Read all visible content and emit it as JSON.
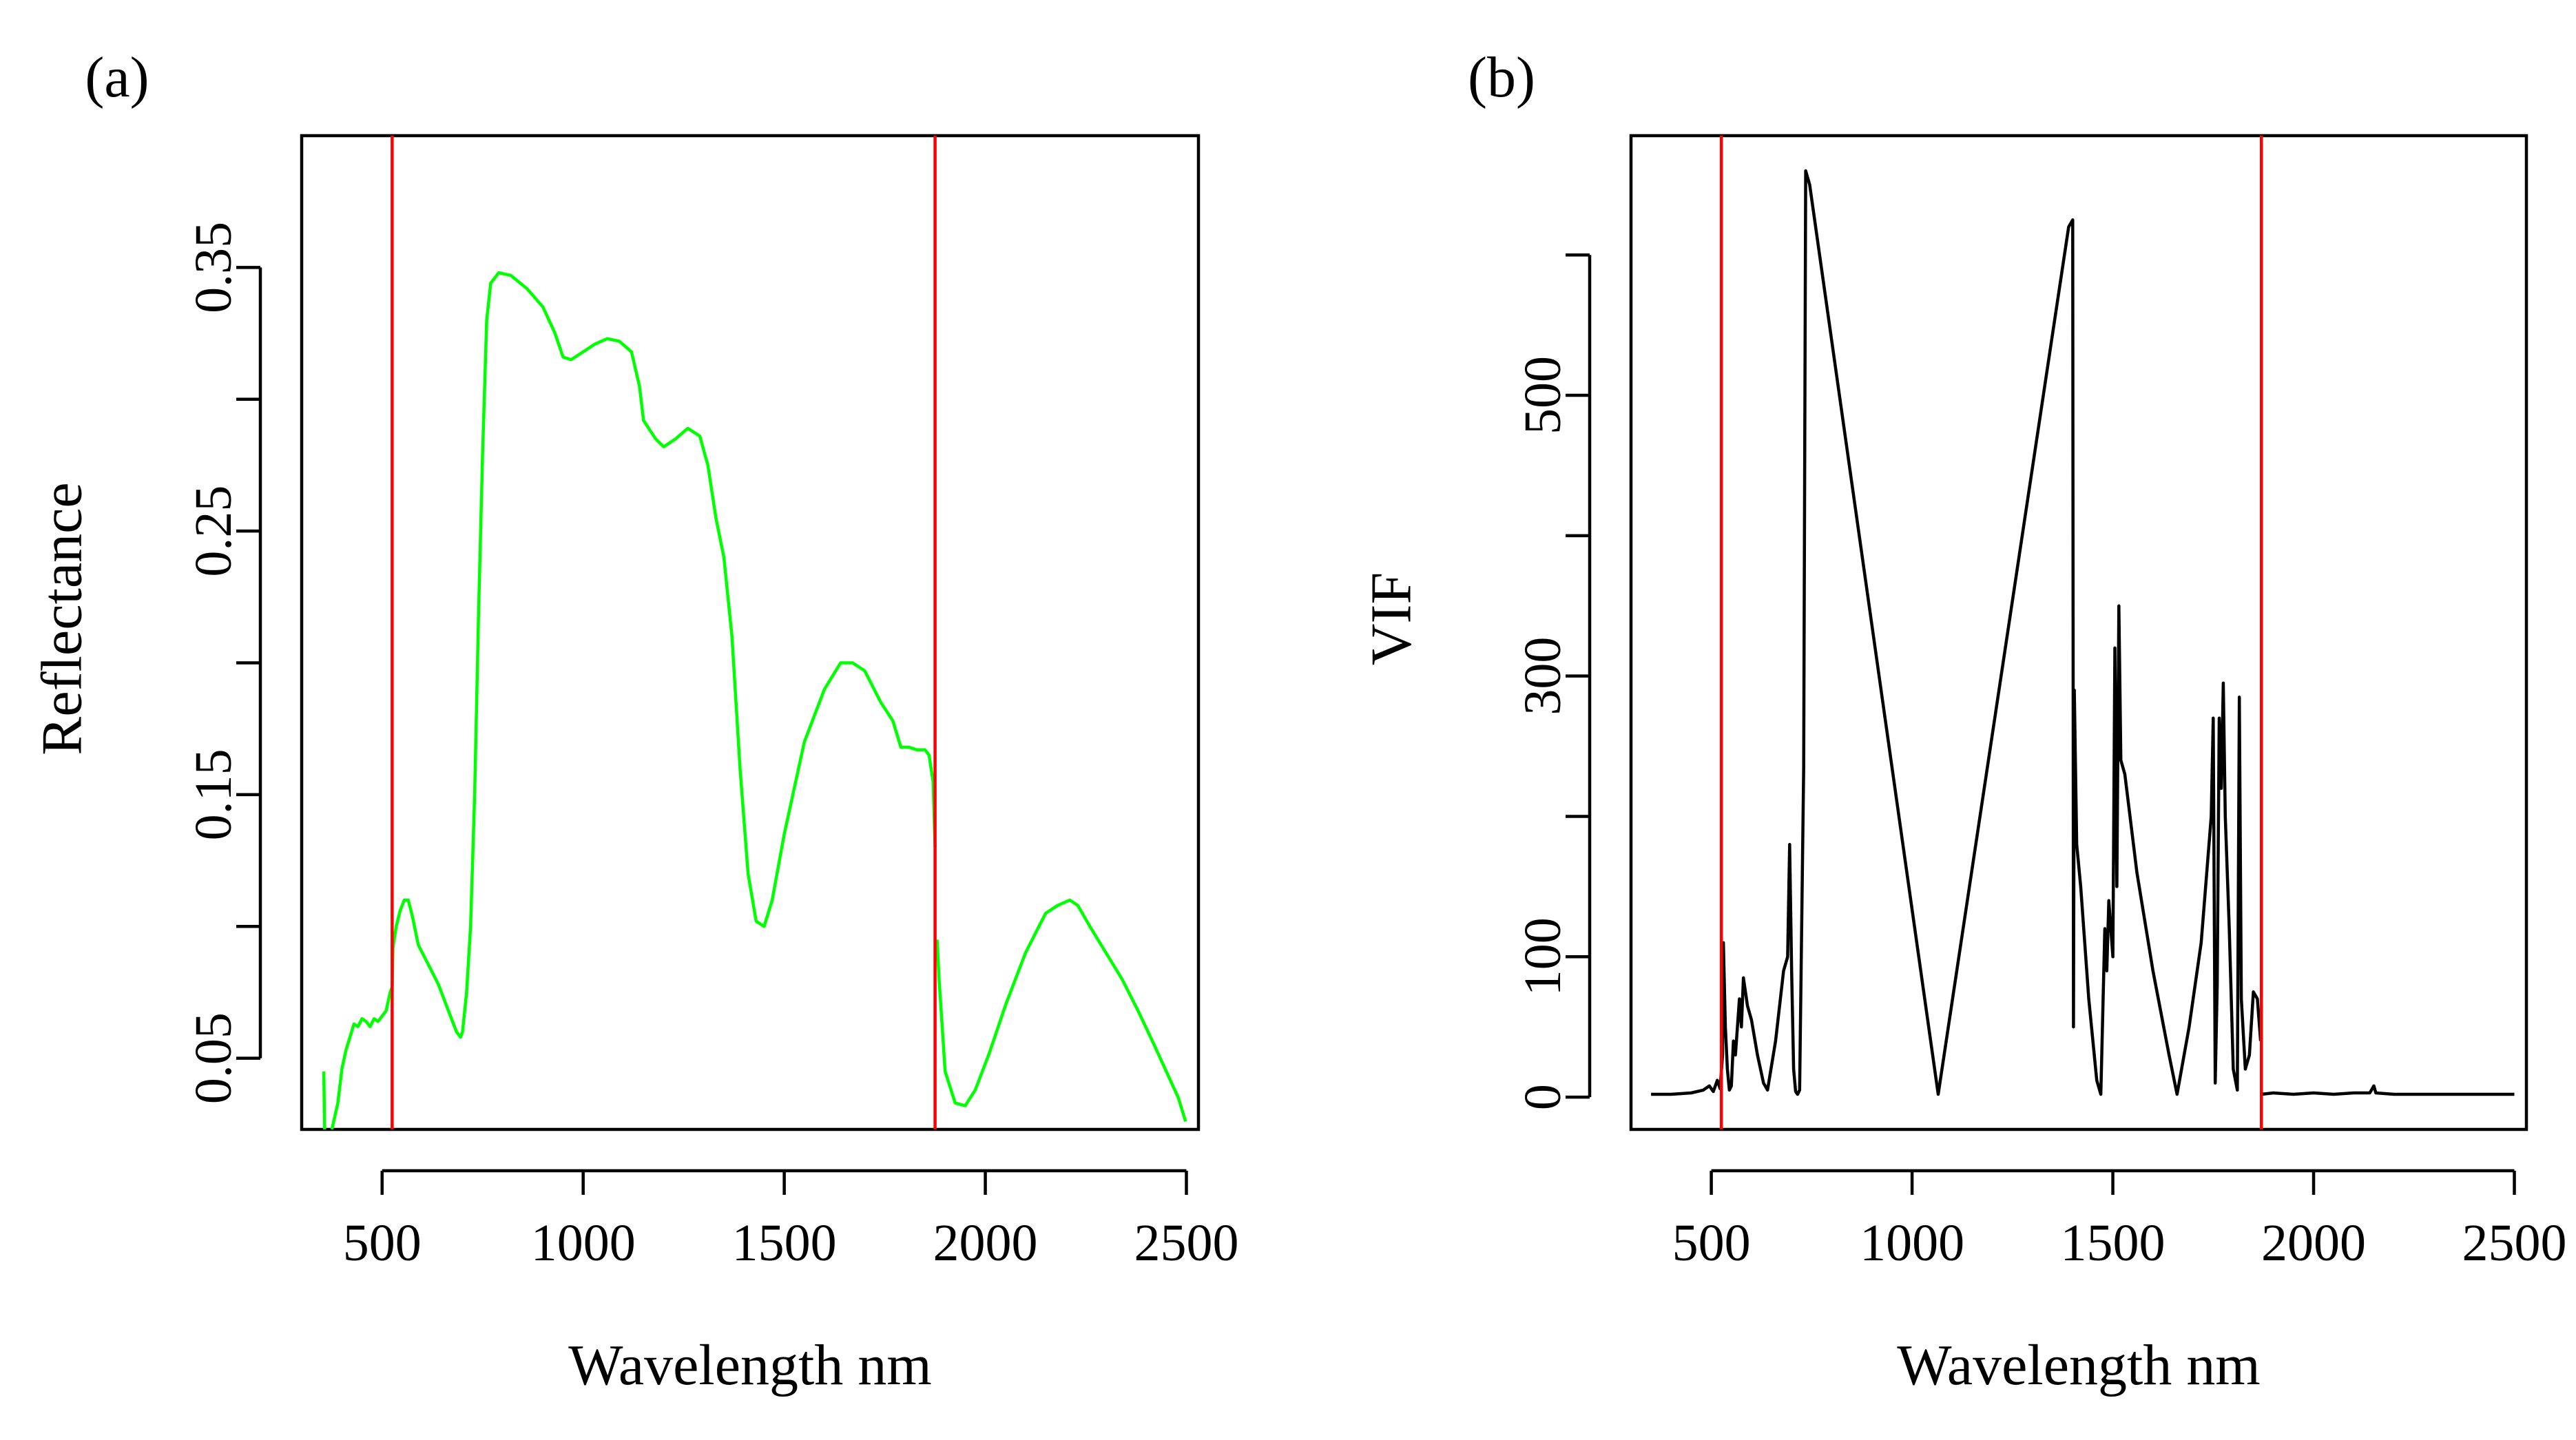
{
  "chart_data": [
    {
      "panel_label": "(a)",
      "type": "line",
      "xlabel": "Wavelength nm",
      "ylabel": "Reflectance",
      "xlim": [
        300,
        2530
      ],
      "ylim": [
        0.023,
        0.4
      ],
      "x_ticks": [
        500,
        1000,
        1500,
        2000,
        2500
      ],
      "y_ticks": [
        0.05,
        0.15,
        0.25,
        0.35
      ],
      "y_tick_labels": [
        "0.05",
        "0.15",
        "0.25",
        "0.35"
      ],
      "y_minor_ticks": [
        0.1,
        0.2,
        0.3
      ],
      "vertical_lines": [
        525,
        1875
      ],
      "vertical_line_color": "#ff0000",
      "series": [
        {
          "name": "Reflectance spectrum",
          "color": "#00ff00",
          "segments": [
            [
              [
                355,
                0.045
              ],
              [
                357,
                0.023
              ]
            ],
            [
              [
                375,
                0.023
              ],
              [
                390,
                0.033
              ],
              [
                400,
                0.046
              ],
              [
                410,
                0.053
              ],
              [
                420,
                0.058
              ],
              [
                430,
                0.063
              ],
              [
                440,
                0.062
              ],
              [
                450,
                0.065
              ],
              [
                460,
                0.064
              ],
              [
                470,
                0.062
              ],
              [
                480,
                0.065
              ],
              [
                490,
                0.064
              ],
              [
                500,
                0.066
              ],
              [
                510,
                0.068
              ],
              [
                520,
                0.075
              ],
              [
                525,
                0.077
              ],
              [
                527,
                0.092
              ],
              [
                535,
                0.1
              ],
              [
                545,
                0.106
              ],
              [
                555,
                0.11
              ],
              [
                565,
                0.11
              ],
              [
                575,
                0.104
              ],
              [
                590,
                0.093
              ],
              [
                610,
                0.087
              ],
              [
                640,
                0.078
              ],
              [
                670,
                0.066
              ],
              [
                685,
                0.06
              ],
              [
                695,
                0.058
              ],
              [
                700,
                0.06
              ],
              [
                710,
                0.075
              ],
              [
                720,
                0.1
              ],
              [
                730,
                0.15
              ],
              [
                740,
                0.22
              ],
              [
                750,
                0.28
              ],
              [
                760,
                0.33
              ],
              [
                770,
                0.344
              ],
              [
                790,
                0.348
              ],
              [
                820,
                0.347
              ],
              [
                860,
                0.342
              ],
              [
                900,
                0.335
              ],
              [
                930,
                0.325
              ],
              [
                950,
                0.316
              ],
              [
                970,
                0.315
              ],
              [
                1000,
                0.318
              ],
              [
                1030,
                0.321
              ],
              [
                1060,
                0.323
              ],
              [
                1090,
                0.322
              ],
              [
                1120,
                0.318
              ],
              [
                1140,
                0.305
              ],
              [
                1150,
                0.292
              ],
              [
                1180,
                0.285
              ],
              [
                1200,
                0.282
              ],
              [
                1230,
                0.285
              ],
              [
                1260,
                0.289
              ],
              [
                1290,
                0.286
              ],
              [
                1310,
                0.275
              ],
              [
                1330,
                0.255
              ],
              [
                1350,
                0.24
              ],
              [
                1370,
                0.21
              ],
              [
                1390,
                0.16
              ],
              [
                1410,
                0.12
              ],
              [
                1430,
                0.102
              ],
              [
                1450,
                0.1
              ],
              [
                1470,
                0.11
              ],
              [
                1500,
                0.135
              ],
              [
                1550,
                0.17
              ],
              [
                1600,
                0.19
              ],
              [
                1640,
                0.2
              ],
              [
                1670,
                0.2
              ],
              [
                1700,
                0.197
              ],
              [
                1740,
                0.185
              ],
              [
                1770,
                0.178
              ],
              [
                1790,
                0.168
              ],
              [
                1810,
                0.168
              ],
              [
                1830,
                0.167
              ],
              [
                1850,
                0.167
              ],
              [
                1860,
                0.165
              ],
              [
                1870,
                0.155
              ],
              [
                1875,
                0.13
              ]
            ],
            [
              [
                1880,
                0.095
              ],
              [
                1885,
                0.08
              ],
              [
                1900,
                0.045
              ],
              [
                1925,
                0.033
              ],
              [
                1950,
                0.032
              ],
              [
                1975,
                0.038
              ],
              [
                2010,
                0.052
              ],
              [
                2050,
                0.07
              ],
              [
                2100,
                0.09
              ],
              [
                2150,
                0.105
              ],
              [
                2180,
                0.108
              ],
              [
                2210,
                0.11
              ],
              [
                2230,
                0.108
              ],
              [
                2260,
                0.1
              ],
              [
                2300,
                0.09
              ],
              [
                2340,
                0.08
              ],
              [
                2380,
                0.068
              ],
              [
                2420,
                0.055
              ],
              [
                2450,
                0.045
              ],
              [
                2480,
                0.035
              ],
              [
                2498,
                0.026
              ]
            ]
          ]
        }
      ]
    },
    {
      "panel_label": "(b)",
      "type": "line",
      "xlabel": "Wavelength nm",
      "ylabel": "VIF",
      "xlim": [
        300,
        2530
      ],
      "ylim": [
        -23,
        685
      ],
      "x_ticks": [
        500,
        1000,
        1500,
        2000,
        2500
      ],
      "y_ticks": [
        0,
        100,
        300,
        500
      ],
      "y_tick_labels": [
        "0",
        "100",
        "300",
        "500"
      ],
      "y_minor_ticks": [
        200,
        400,
        600
      ],
      "vertical_lines": [
        525,
        1870
      ],
      "vertical_line_color": "#ff0000",
      "series": [
        {
          "name": "VIF",
          "color": "#000000",
          "segments": [
            [
              [
                350,
                2
              ],
              [
                400,
                2
              ],
              [
                450,
                3
              ],
              [
                480,
                5
              ],
              [
                495,
                8
              ],
              [
                505,
                4
              ],
              [
                515,
                12
              ],
              [
                522,
                6
              ],
              [
                528,
                30
              ],
              [
                530,
                110
              ],
              [
                535,
                50
              ],
              [
                540,
                20
              ],
              [
                545,
                5
              ],
              [
                550,
                8
              ],
              [
                555,
                40
              ],
              [
                560,
                30
              ],
              [
                570,
                70
              ],
              [
                575,
                50
              ],
              [
                580,
                85
              ],
              [
                590,
                65
              ],
              [
                600,
                55
              ],
              [
                615,
                30
              ],
              [
                630,
                10
              ],
              [
                640,
                5
              ],
              [
                660,
                40
              ],
              [
                680,
                90
              ],
              [
                690,
                100
              ],
              [
                695,
                180
              ],
              [
                700,
                90
              ],
              [
                705,
                20
              ],
              [
                710,
                4
              ],
              [
                715,
                2
              ],
              [
                720,
                5
              ],
              [
                730,
                235
              ],
              [
                735,
                660
              ],
              [
                745,
                650
              ],
              [
                1065,
                2
              ],
              [
                1390,
                620
              ],
              [
                1400,
                625
              ],
              [
                1402,
                50
              ],
              [
                1404,
                290
              ],
              [
                1410,
                180
              ],
              [
                1420,
                150
              ],
              [
                1440,
                70
              ],
              [
                1460,
                12
              ],
              [
                1470,
                2
              ],
              [
                1480,
                120
              ],
              [
                1485,
                90
              ],
              [
                1490,
                140
              ],
              [
                1500,
                100
              ],
              [
                1505,
                320
              ],
              [
                1510,
                150
              ],
              [
                1515,
                350
              ],
              [
                1520,
                240
              ],
              [
                1530,
                230
              ],
              [
                1560,
                160
              ],
              [
                1600,
                90
              ],
              [
                1640,
                30
              ],
              [
                1660,
                2
              ],
              [
                1690,
                50
              ],
              [
                1720,
                110
              ],
              [
                1745,
                200
              ],
              [
                1750,
                270
              ],
              [
                1755,
                10
              ],
              [
                1760,
                80
              ],
              [
                1765,
                270
              ],
              [
                1770,
                220
              ],
              [
                1775,
                295
              ],
              [
                1780,
                200
              ],
              [
                1790,
                120
              ],
              [
                1800,
                20
              ],
              [
                1810,
                5
              ],
              [
                1815,
                285
              ],
              [
                1820,
                70
              ],
              [
                1830,
                20
              ],
              [
                1840,
                30
              ],
              [
                1850,
                75
              ],
              [
                1860,
                70
              ],
              [
                1868,
                40
              ]
            ],
            [
              [
                1870,
                2
              ],
              [
                1900,
                3
              ],
              [
                1950,
                2
              ],
              [
                2000,
                3
              ],
              [
                2050,
                2
              ],
              [
                2100,
                3
              ],
              [
                2140,
                3
              ],
              [
                2150,
                8
              ],
              [
                2155,
                3
              ],
              [
                2200,
                2
              ],
              [
                2300,
                2
              ],
              [
                2400,
                2
              ],
              [
                2500,
                2
              ]
            ]
          ]
        }
      ]
    }
  ]
}
